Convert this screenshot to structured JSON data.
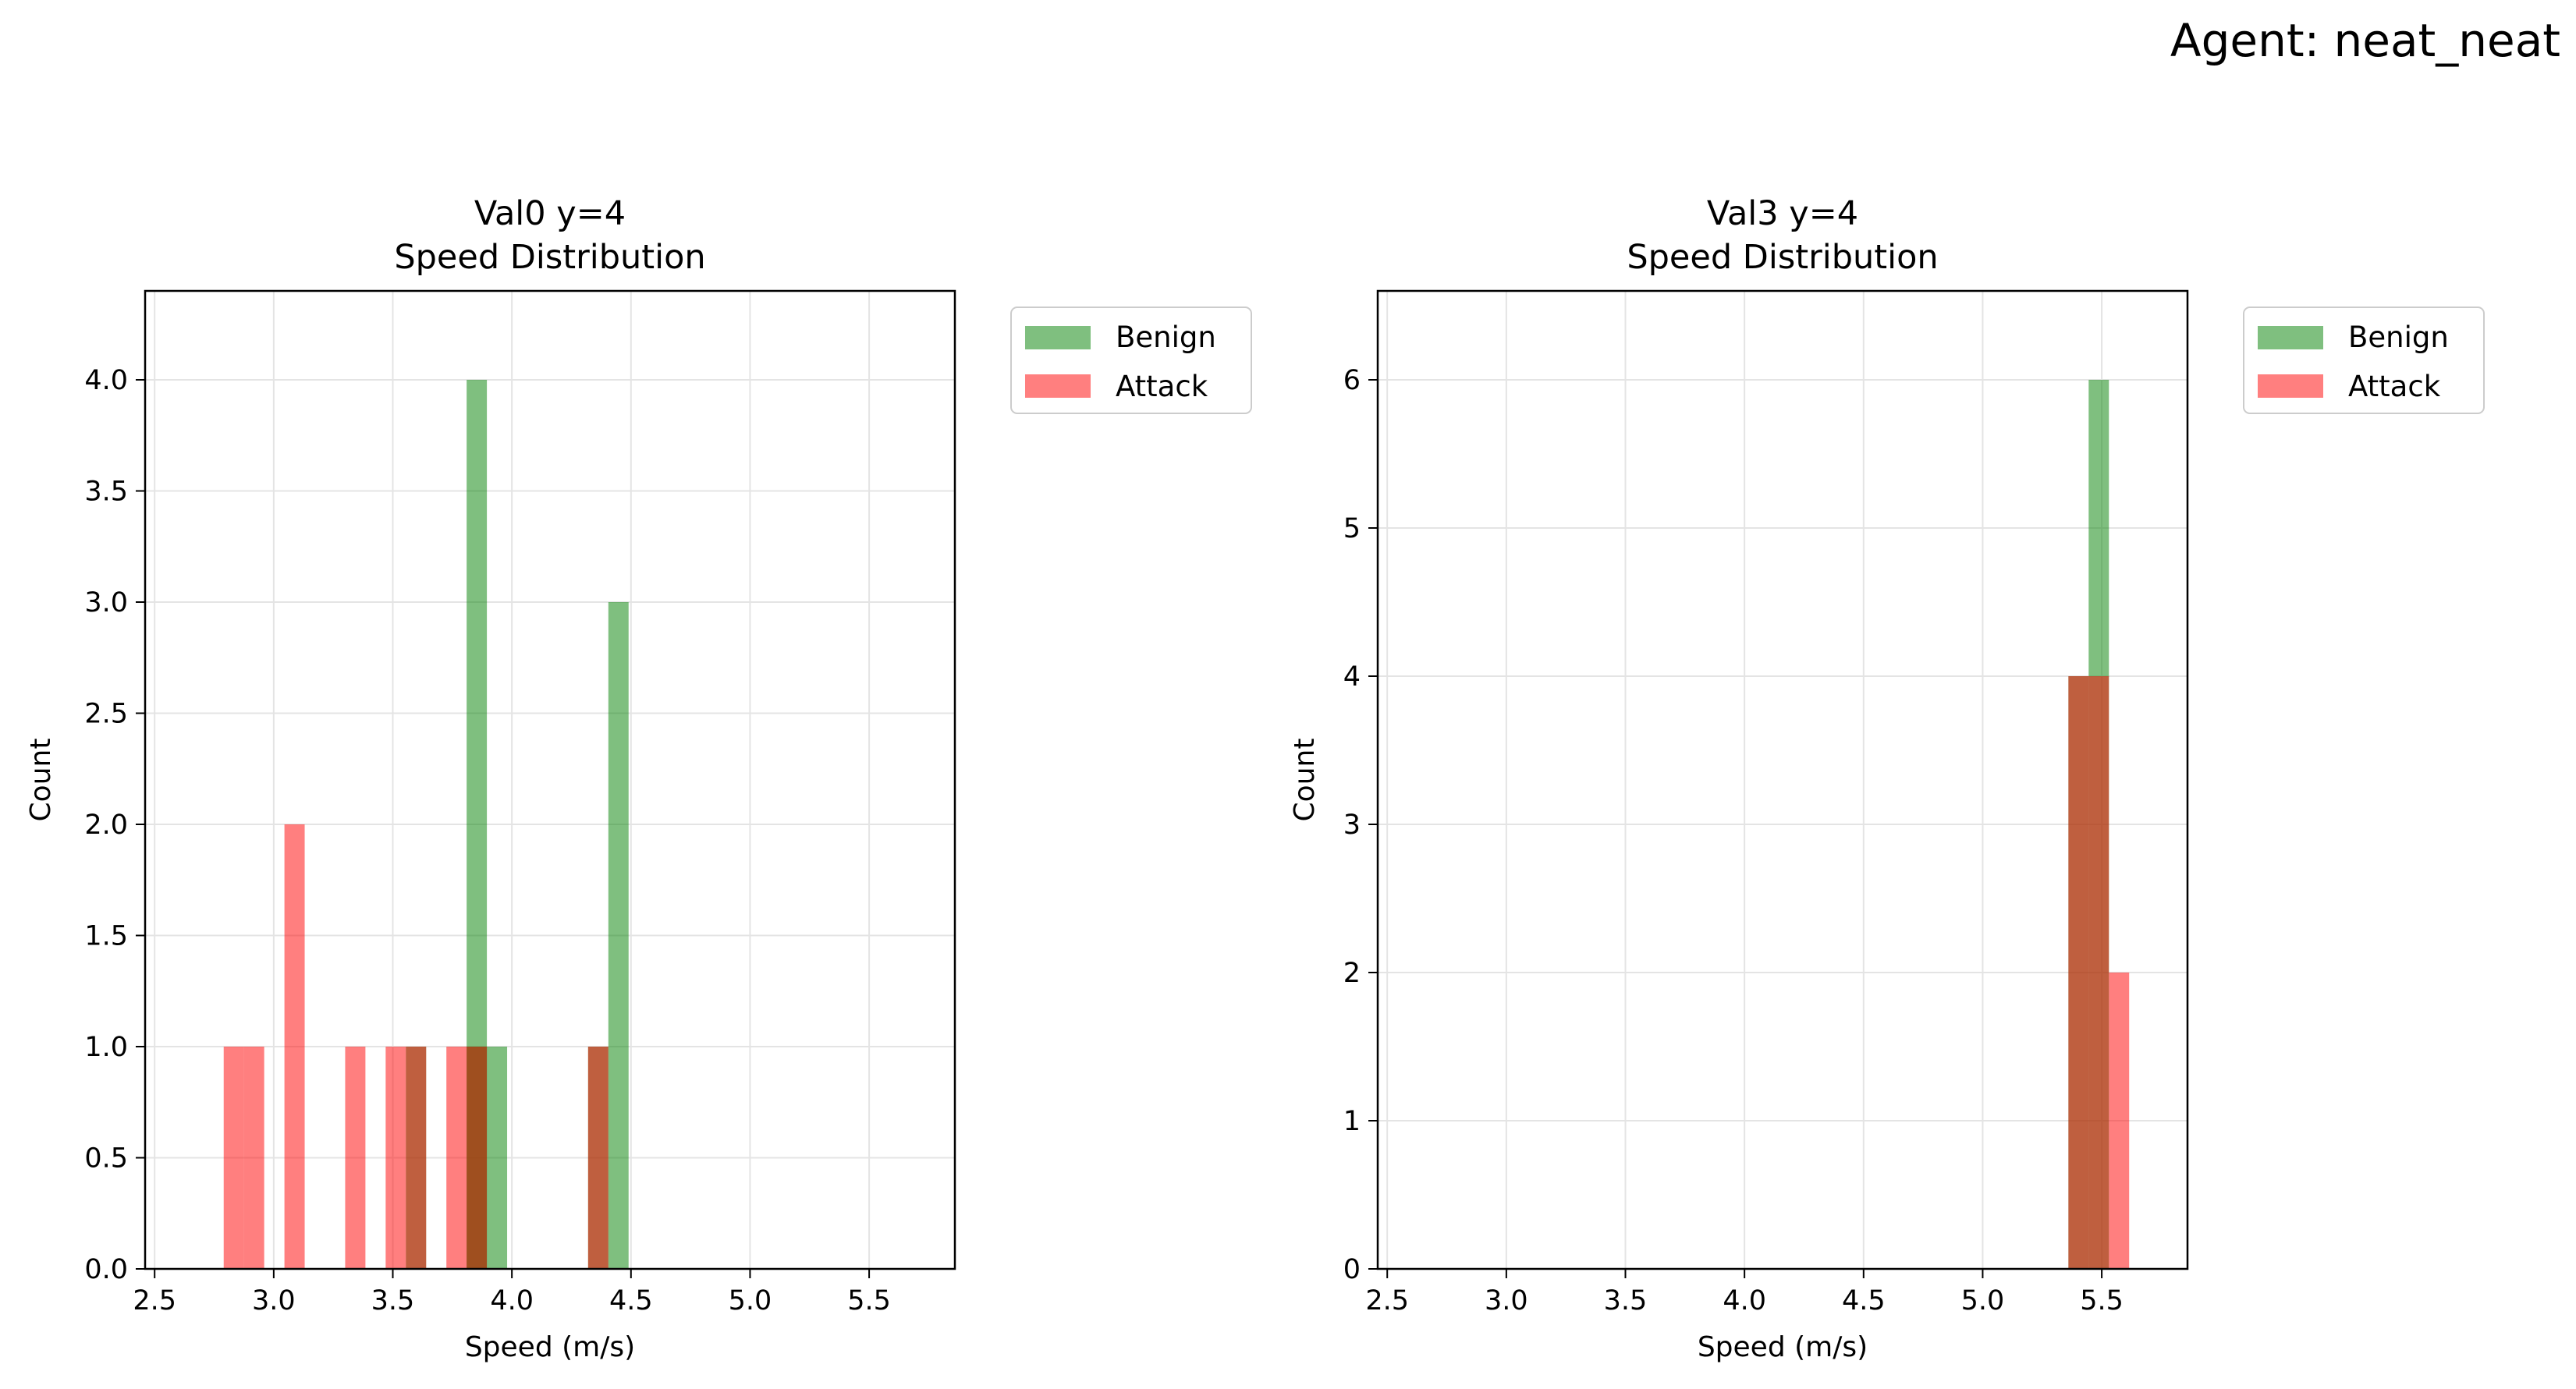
{
  "figure_title": "Agent: neat_neat",
  "colors": {
    "benign": "#008000",
    "attack": "#ff0000",
    "overlap": "#bf5a3c",
    "grid": "#e4e4e4",
    "axis": "#000000"
  },
  "chart_data": [
    {
      "type": "bar",
      "title": "Val0 y=4",
      "subtitle": "Speed Distribution",
      "xlabel": "Speed (m/s)",
      "ylabel": "Count",
      "xlim": [
        2.46,
        5.86
      ],
      "ylim": [
        0,
        4.4
      ],
      "xticks": [
        "2.5",
        "3.0",
        "3.5",
        "4.0",
        "4.5",
        "5.0",
        "5.5"
      ],
      "yticks": [
        "0.0",
        "0.5",
        "1.0",
        "1.5",
        "2.0",
        "2.5",
        "3.0",
        "3.5",
        "4.0"
      ],
      "grid": true,
      "legend_position": "outside-right",
      "bin_width": 0.085,
      "series": [
        {
          "name": "Benign",
          "bars": [
            {
              "x": 3.81,
              "value": 4
            },
            {
              "x": 3.895,
              "value": 1
            },
            {
              "x": 3.555,
              "value": 1
            },
            {
              "x": 3.81,
              "value": 1
            },
            {
              "x": 4.32,
              "value": 1
            },
            {
              "x": 4.405,
              "value": 3
            }
          ]
        },
        {
          "name": "Attack",
          "bars": [
            {
              "x": 2.79,
              "value": 1
            },
            {
              "x": 2.875,
              "value": 1
            },
            {
              "x": 3.045,
              "value": 2
            },
            {
              "x": 3.3,
              "value": 1
            },
            {
              "x": 3.47,
              "value": 1
            },
            {
              "x": 3.555,
              "value": 1
            },
            {
              "x": 3.725,
              "value": 1
            },
            {
              "x": 3.81,
              "value": 1
            },
            {
              "x": 4.32,
              "value": 1
            }
          ]
        }
      ]
    },
    {
      "type": "bar",
      "title": "Val3 y=4",
      "subtitle": "Speed Distribution",
      "xlabel": "Speed (m/s)",
      "ylabel": "Count",
      "xlim": [
        2.46,
        5.86
      ],
      "ylim": [
        0,
        6.6
      ],
      "xticks": [
        "2.5",
        "3.0",
        "3.5",
        "4.0",
        "4.5",
        "5.0",
        "5.5"
      ],
      "yticks": [
        "0",
        "1",
        "2",
        "3",
        "4",
        "5",
        "6"
      ],
      "grid": true,
      "legend_position": "outside-right",
      "bin_width": 0.085,
      "series": [
        {
          "name": "Benign",
          "bars": [
            {
              "x": 5.36,
              "value": 4
            },
            {
              "x": 5.445,
              "value": 6
            }
          ]
        },
        {
          "name": "Attack",
          "bars": [
            {
              "x": 5.36,
              "value": 4
            },
            {
              "x": 5.445,
              "value": 4
            },
            {
              "x": 5.53,
              "value": 2
            }
          ]
        }
      ]
    }
  ]
}
